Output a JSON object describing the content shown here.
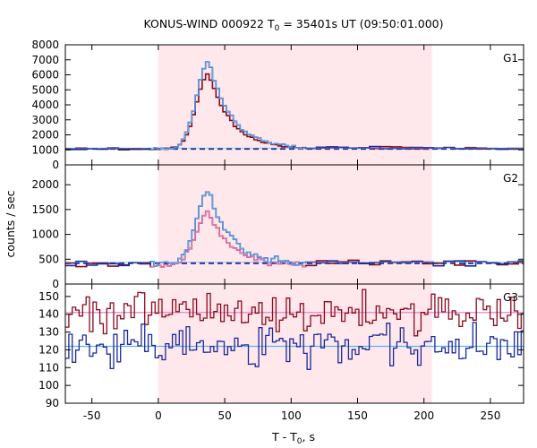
{
  "chart_data": {
    "type": "line",
    "title": "KONUS-WIND 000922 T",
    "title_sub": "0",
    "title_rest": " = 35401s UT (09:50:01.000)",
    "xlabel": "T - T",
    "xlabel_sub": "0",
    "xlabel_rest": ", s",
    "ylabel": "counts / sec",
    "xlim": [
      -70,
      275
    ],
    "xticks": [
      -50,
      0,
      50,
      100,
      150,
      200,
      250
    ],
    "xtick_labels": [
      "-50",
      "0",
      "50",
      "100",
      "150",
      "200",
      "250"
    ],
    "shaded_interval": [
      0,
      206
    ],
    "colors": {
      "dark_red": "#8b0a1e",
      "navy": "#1c2a9c",
      "light_blue": "#55b4ee",
      "pink": "#ee82c8",
      "shade": "#ffe8ec"
    },
    "panels": [
      {
        "label": "G1",
        "ylim": [
          0,
          8000
        ],
        "yticks": [
          0,
          1000,
          2000,
          3000,
          4000,
          5000,
          6000,
          7000,
          8000
        ],
        "ytick_labels": [
          "0",
          "1000",
          "2000",
          "3000",
          "4000",
          "5000",
          "6000",
          "7000",
          "8000"
        ],
        "background": 1070,
        "background_post": 1120,
        "peak_time": 38,
        "peak_value": 6950,
        "rise_width": 9,
        "decay_time": 17,
        "ratio_low": 0.86,
        "noise": 40,
        "bin_step": 2.6,
        "fine_start": 0,
        "fine_end": 110,
        "coarse_step": 8
      },
      {
        "label": "G2",
        "ylim": [
          0,
          2400
        ],
        "yticks": [
          0,
          500,
          1000,
          1500,
          2000
        ],
        "ytick_labels": [
          "0",
          "500",
          "1000",
          "1500",
          "2000"
        ],
        "background": 420,
        "background_red": 380,
        "background_post": 440,
        "peak_time": 38,
        "peak_value": 1870,
        "rise_width": 9,
        "decay_time": 16,
        "ratio_low": 0.74,
        "noise": 30,
        "bin_step": 2.6,
        "fine_start": 0,
        "fine_end": 110,
        "coarse_step": 8
      },
      {
        "label": "G3",
        "ylim": [
          90,
          157
        ],
        "yticks": [
          90,
          100,
          110,
          120,
          130,
          140,
          150
        ],
        "ytick_labels": [
          "90",
          "100",
          "110",
          "120",
          "130",
          "140",
          "150"
        ],
        "mean_red": 141,
        "mean_blue": 122,
        "noise": 5.5,
        "bin_step": 2.6
      }
    ]
  }
}
